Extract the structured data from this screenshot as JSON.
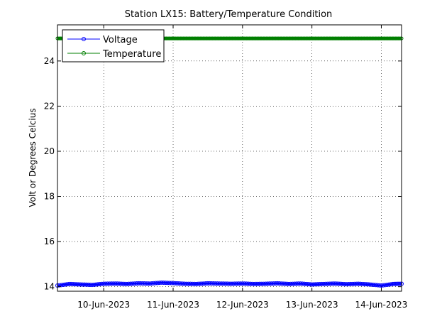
{
  "chart_data": {
    "type": "line",
    "title": "Station LX15: Battery/Temperature Condition",
    "xlabel": "",
    "ylabel": "Volt or Degrees Celcius",
    "xlim": [
      "2023-06-09T08:00",
      "2023-06-14T07:00"
    ],
    "ylim": [
      13.8,
      25.6
    ],
    "yticks": [
      14,
      16,
      18,
      20,
      22,
      24
    ],
    "xticks": [
      {
        "date": "2023-06-10",
        "label": "10-Jun-2023"
      },
      {
        "date": "2023-06-11",
        "label": "11-Jun-2023"
      },
      {
        "date": "2023-06-12",
        "label": "12-Jun-2023"
      },
      {
        "date": "2023-06-13",
        "label": "13-Jun-2023"
      },
      {
        "date": "2023-06-14",
        "label": "14-Jun-2023"
      }
    ],
    "grid": true,
    "legend_position": "top-left",
    "series": [
      {
        "name": "Voltage",
        "color": "#0000ff",
        "marker": "circle",
        "x": [
          "2023-06-09T08:00",
          "2023-06-09T12:00",
          "2023-06-09T16:00",
          "2023-06-09T20:00",
          "2023-06-10T00:00",
          "2023-06-10T04:00",
          "2023-06-10T08:00",
          "2023-06-10T12:00",
          "2023-06-10T16:00",
          "2023-06-10T20:00",
          "2023-06-11T00:00",
          "2023-06-11T04:00",
          "2023-06-11T08:00",
          "2023-06-11T12:00",
          "2023-06-11T16:00",
          "2023-06-11T20:00",
          "2023-06-12T00:00",
          "2023-06-12T04:00",
          "2023-06-12T08:00",
          "2023-06-12T12:00",
          "2023-06-12T16:00",
          "2023-06-12T20:00",
          "2023-06-13T00:00",
          "2023-06-13T04:00",
          "2023-06-13T08:00",
          "2023-06-13T12:00",
          "2023-06-13T16:00",
          "2023-06-13T20:00",
          "2023-06-14T00:00",
          "2023-06-14T04:00",
          "2023-06-14T07:00"
        ],
        "values": [
          14.05,
          14.12,
          14.1,
          14.08,
          14.13,
          14.14,
          14.12,
          14.15,
          14.14,
          14.18,
          14.16,
          14.13,
          14.12,
          14.15,
          14.14,
          14.13,
          14.14,
          14.12,
          14.13,
          14.15,
          14.12,
          14.14,
          14.1,
          14.12,
          14.14,
          14.11,
          14.13,
          14.1,
          14.05,
          14.12,
          14.13
        ]
      },
      {
        "name": "Temperature",
        "color": "#007f00",
        "marker": "circle",
        "x": [
          "2023-06-09T08:00",
          "2023-06-14T07:00"
        ],
        "values": [
          25.0,
          25.0
        ]
      }
    ]
  }
}
